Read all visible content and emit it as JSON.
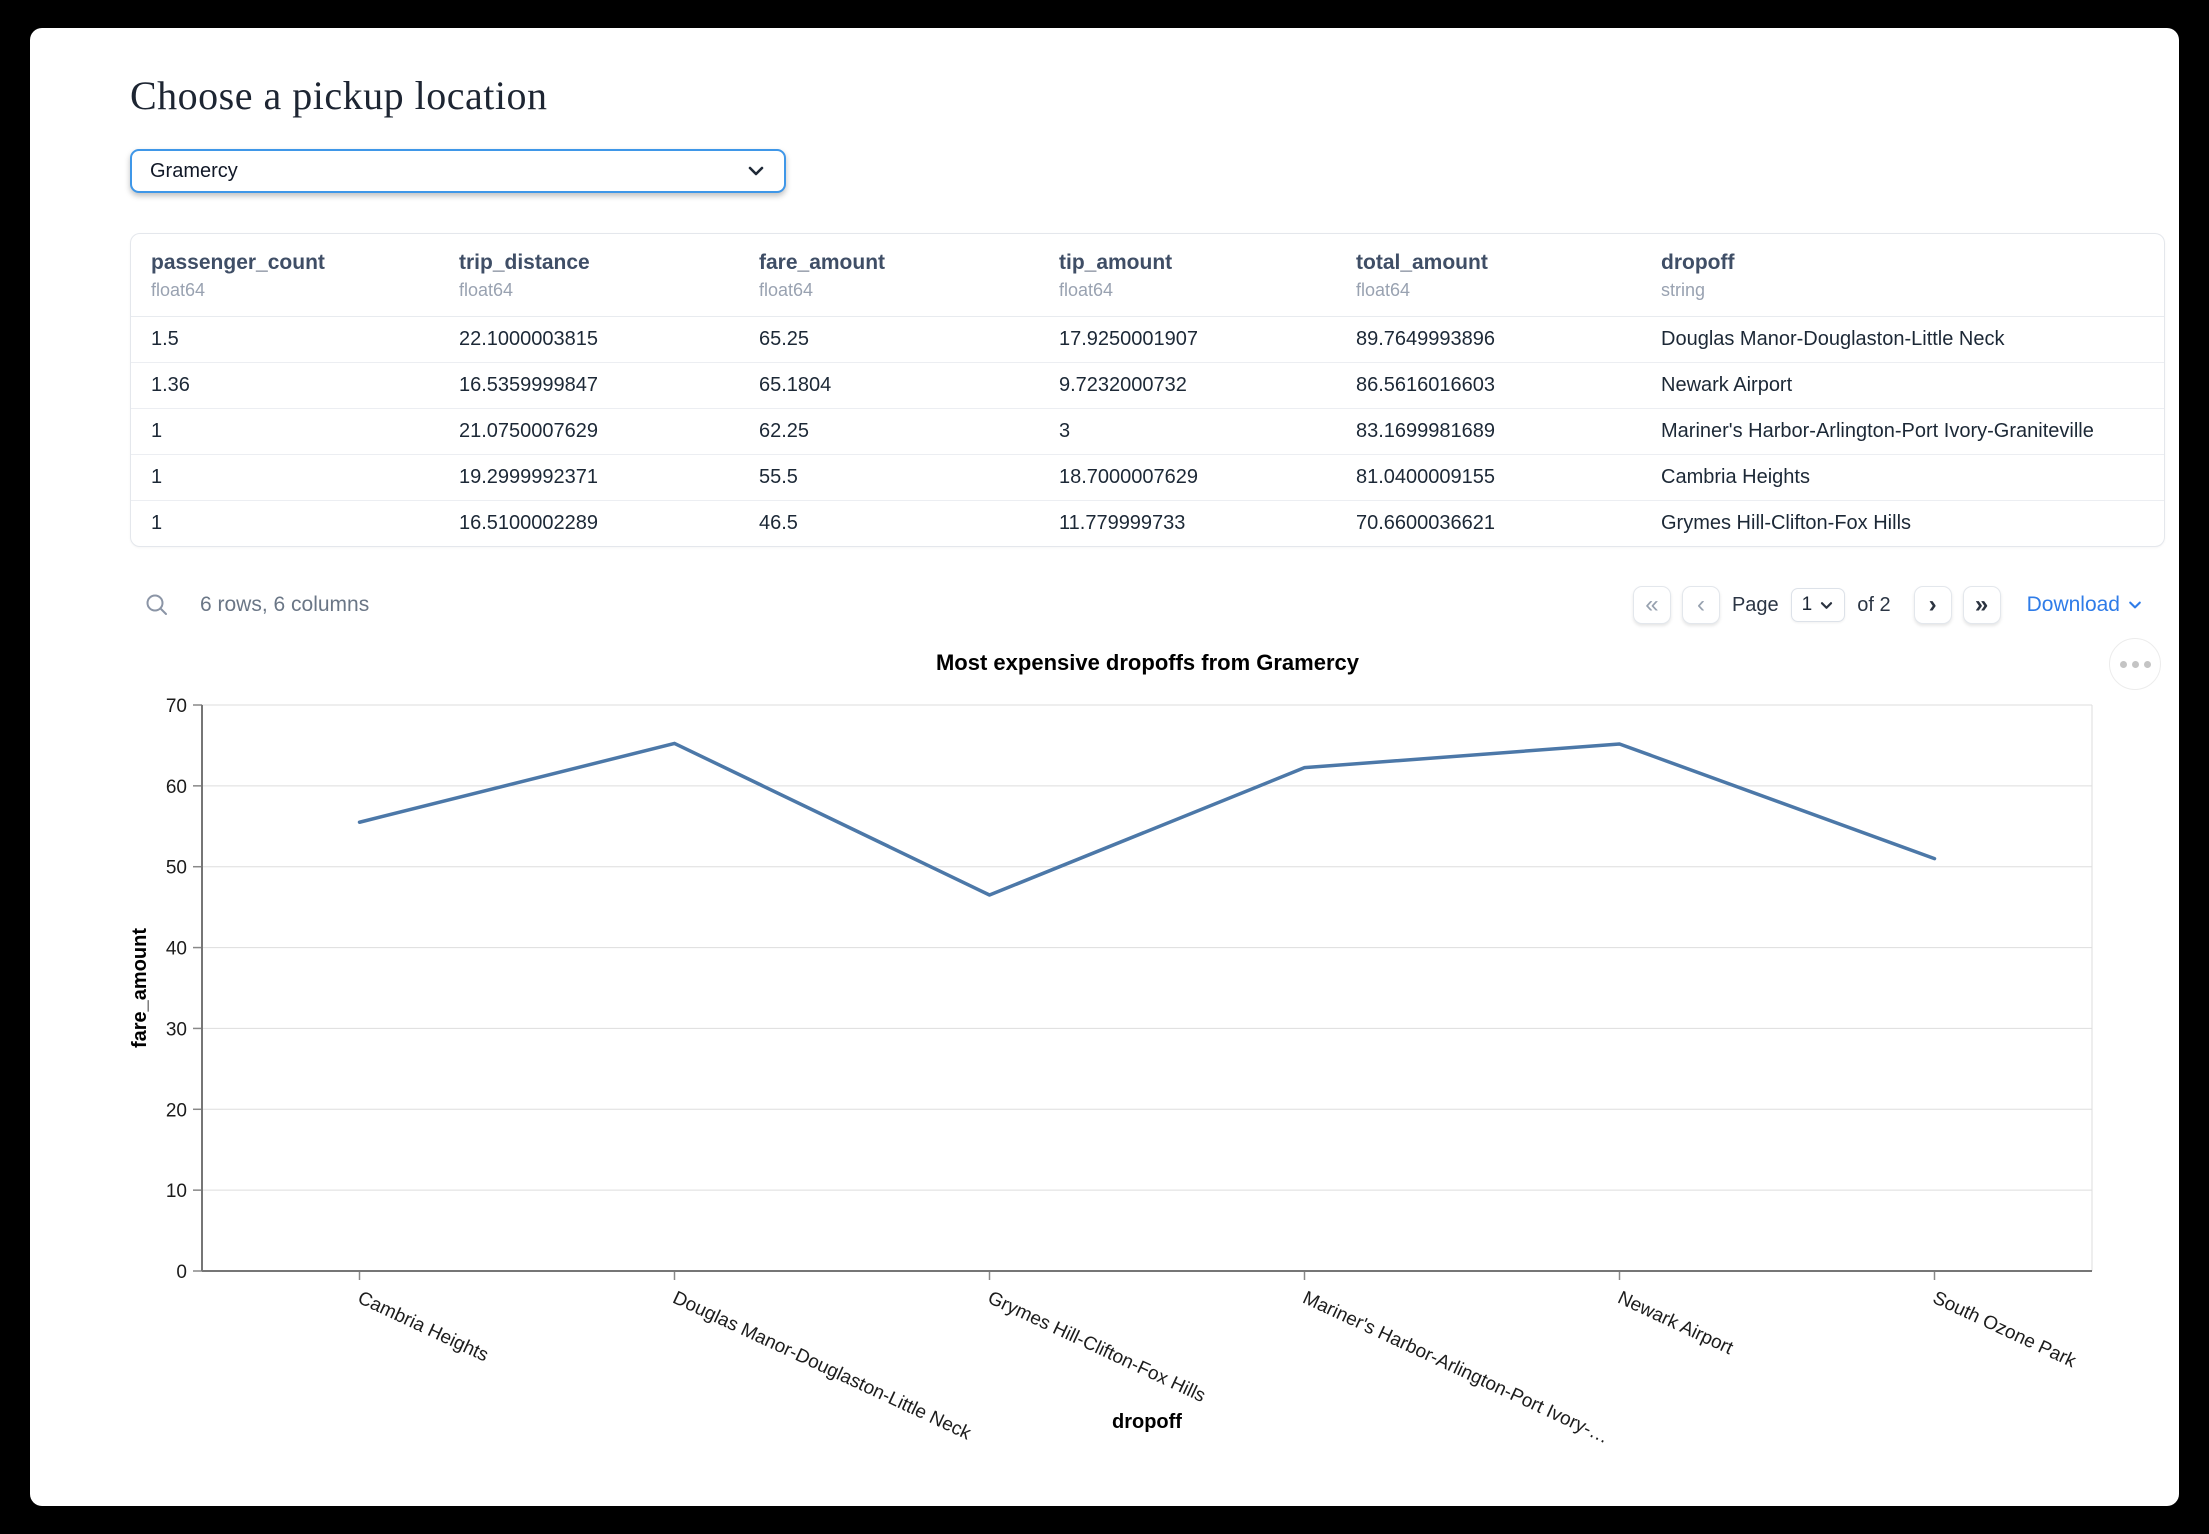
{
  "header": {
    "title": "Choose a pickup location"
  },
  "pickup_select": {
    "value": "Gramercy"
  },
  "table": {
    "columns": [
      {
        "name": "passenger_count",
        "dtype": "float64"
      },
      {
        "name": "trip_distance",
        "dtype": "float64"
      },
      {
        "name": "fare_amount",
        "dtype": "float64"
      },
      {
        "name": "tip_amount",
        "dtype": "float64"
      },
      {
        "name": "total_amount",
        "dtype": "float64"
      },
      {
        "name": "dropoff",
        "dtype": "string"
      }
    ],
    "rows": [
      [
        "1.5",
        "22.1000003815",
        "65.25",
        "17.9250001907",
        "89.7649993896",
        "Douglas Manor-Douglaston-Little Neck"
      ],
      [
        "1.36",
        "16.5359999847",
        "65.1804",
        "9.7232000732",
        "86.5616016603",
        "Newark Airport"
      ],
      [
        "1",
        "21.0750007629",
        "62.25",
        "3",
        "83.1699981689",
        "Mariner's Harbor-Arlington-Port Ivory-Graniteville"
      ],
      [
        "1",
        "19.2999992371",
        "55.5",
        "18.7000007629",
        "81.0400009155",
        "Cambria Heights"
      ],
      [
        "1",
        "16.5100002289",
        "46.5",
        "11.779999733",
        "70.6600036621",
        "Grymes Hill-Clifton-Fox Hills"
      ]
    ],
    "summary": "6 rows, 6 columns",
    "pagination": {
      "page_label": "Page",
      "page_value": "1",
      "of_label": "of 2",
      "first_icon": "«",
      "prev_icon": "‹",
      "next_icon": "›",
      "last_icon": "»"
    },
    "download_label": "Download"
  },
  "chart_data": {
    "type": "line",
    "title": "Most expensive dropoffs from Gramercy",
    "xlabel": "dropoff",
    "ylabel": "fare_amount",
    "categories": [
      "Cambria Heights",
      "Douglas Manor-Douglaston-Little Neck",
      "Grymes Hill-Clifton-Fox Hills",
      "Mariner's Harbor-Arlington-Port Ivory-…",
      "Newark Airport",
      "South Ozone Park"
    ],
    "values": [
      55.5,
      65.25,
      46.5,
      62.25,
      65.1804,
      51
    ],
    "ylim": [
      0,
      70
    ],
    "yticks": [
      0,
      10,
      20,
      30,
      40,
      50,
      60,
      70
    ],
    "grid": true,
    "legend": "none",
    "line_color": "#4c78a8"
  },
  "colors": {
    "accent_blue": "#2f7ce8",
    "select_border": "#3f97e8"
  }
}
